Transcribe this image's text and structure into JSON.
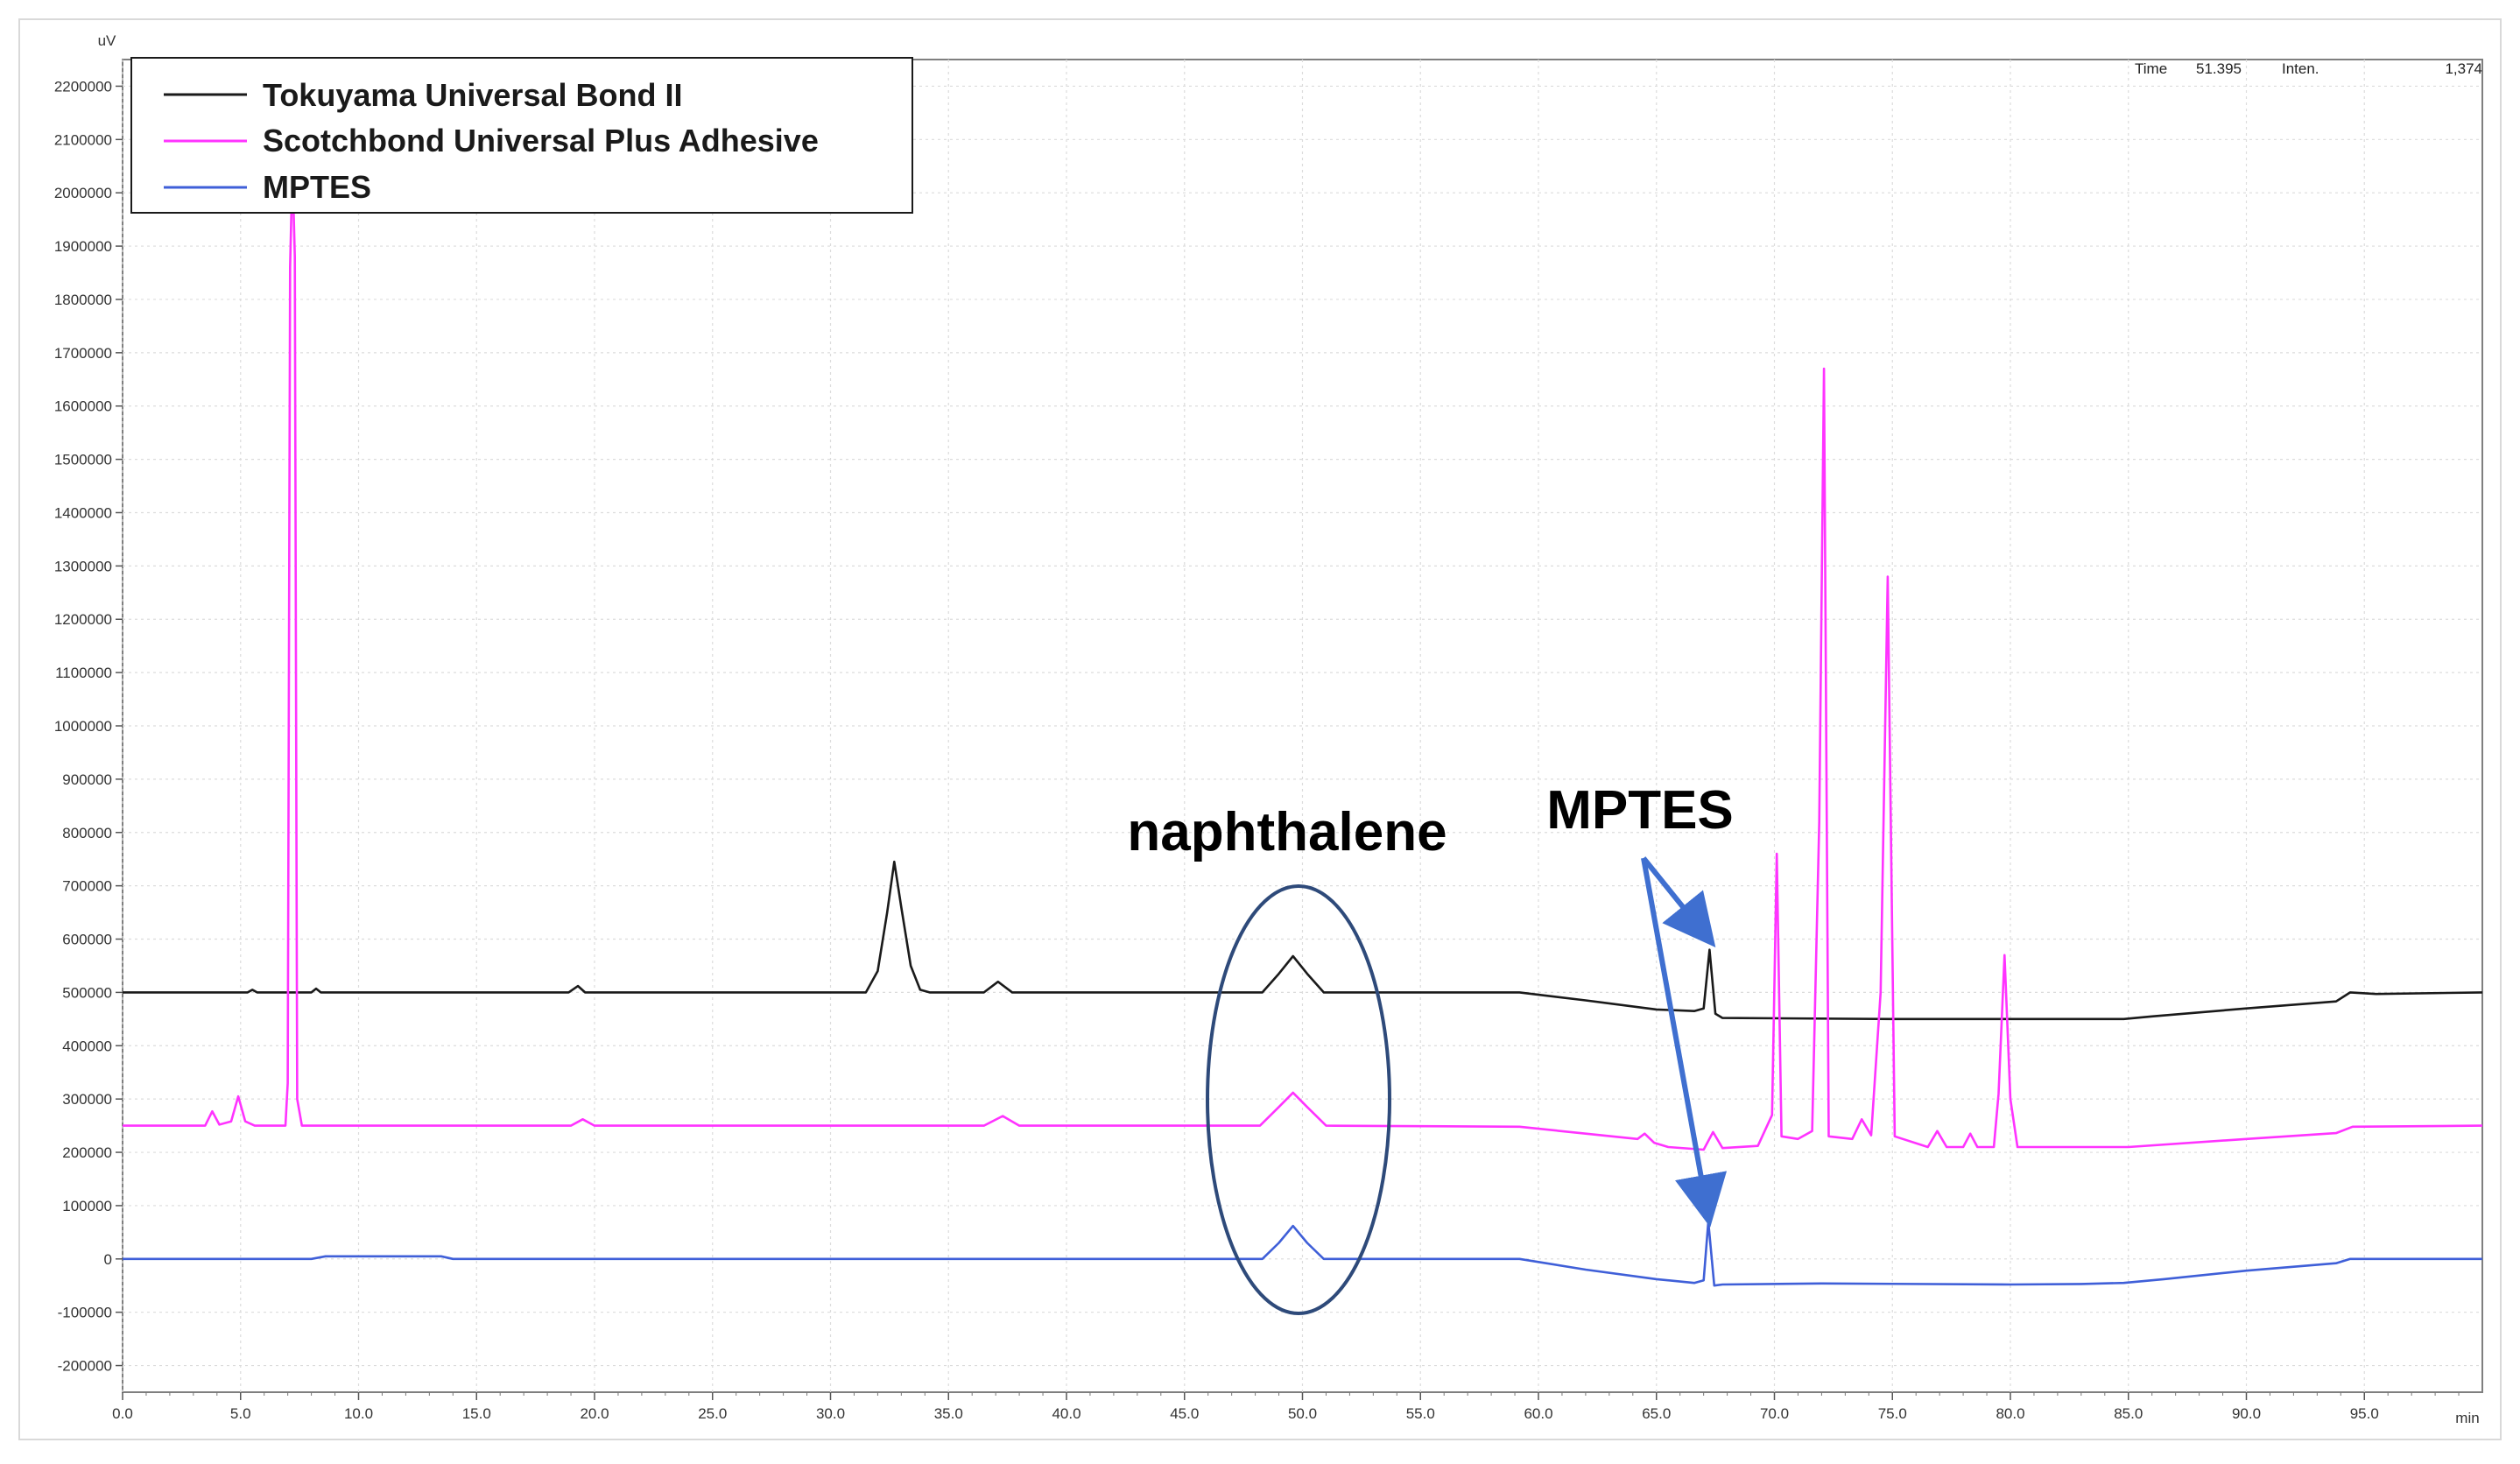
{
  "chart_data": {
    "type": "line",
    "y_unit_label": "uV",
    "x_unit_label": "min",
    "xlim": [
      0,
      100
    ],
    "ylim": [
      -250000,
      2250000
    ],
    "x_ticks": [
      0.0,
      5.0,
      10.0,
      15.0,
      20.0,
      25.0,
      30.0,
      35.0,
      40.0,
      45.0,
      50.0,
      55.0,
      60.0,
      65.0,
      70.0,
      75.0,
      80.0,
      85.0,
      90.0,
      95.0
    ],
    "x_tick_labels": [
      "0.0",
      "5.0",
      "10.0",
      "15.0",
      "20.0",
      "25.0",
      "30.0",
      "35.0",
      "40.0",
      "45.0",
      "50.0",
      "55.0",
      "60.0",
      "65.0",
      "70.0",
      "75.0",
      "80.0",
      "85.0",
      "90.0",
      "95.0"
    ],
    "y_ticks": [
      -200000,
      -100000,
      0,
      100000,
      200000,
      300000,
      400000,
      500000,
      600000,
      700000,
      800000,
      900000,
      1000000,
      1100000,
      1200000,
      1300000,
      1400000,
      1500000,
      1600000,
      1700000,
      1800000,
      1900000,
      2000000,
      2100000,
      2200000
    ],
    "y_tick_labels": [
      "-200000",
      "-100000",
      "0",
      "100000",
      "200000",
      "300000",
      "400000",
      "500000",
      "600000",
      "700000",
      "800000",
      "900000",
      "1000000",
      "1100000",
      "1200000",
      "1300000",
      "1400000",
      "1500000",
      "1600000",
      "1700000",
      "1800000",
      "1900000",
      "2000000",
      "2100000",
      "2200000"
    ],
    "grid": true,
    "legend_position": "top-left",
    "series": [
      {
        "name": "Tokuyama Universal Bond II",
        "color": "#1a1a1a",
        "points": [
          [
            0,
            500000
          ],
          [
            5.3,
            500000
          ],
          [
            5.5,
            505000
          ],
          [
            5.7,
            500000
          ],
          [
            8.0,
            500000
          ],
          [
            8.2,
            507000
          ],
          [
            8.4,
            500000
          ],
          [
            18.9,
            500000
          ],
          [
            19.3,
            512000
          ],
          [
            19.6,
            500000
          ],
          [
            31.5,
            500000
          ],
          [
            32.0,
            540000
          ],
          [
            32.4,
            650000
          ],
          [
            32.7,
            745000
          ],
          [
            33.0,
            660000
          ],
          [
            33.4,
            550000
          ],
          [
            33.8,
            505000
          ],
          [
            34.2,
            500000
          ],
          [
            36.5,
            500000
          ],
          [
            37.1,
            520000
          ],
          [
            37.7,
            500000
          ],
          [
            48.3,
            500000
          ],
          [
            49.0,
            535000
          ],
          [
            49.6,
            568000
          ],
          [
            50.2,
            535000
          ],
          [
            50.9,
            500000
          ],
          [
            59.2,
            500000
          ],
          [
            62.0,
            485000
          ],
          [
            65.0,
            468000
          ],
          [
            66.6,
            465000
          ],
          [
            67.0,
            470000
          ],
          [
            67.25,
            580000
          ],
          [
            67.5,
            460000
          ],
          [
            67.8,
            452000
          ],
          [
            75.0,
            450000
          ],
          [
            80.0,
            450000
          ],
          [
            84.8,
            450000
          ],
          [
            86.0,
            455000
          ],
          [
            90.0,
            470000
          ],
          [
            93.8,
            483000
          ],
          [
            94.4,
            500000
          ],
          [
            95.5,
            497000
          ],
          [
            100,
            500000
          ]
        ]
      },
      {
        "name": "Scotchbond Universal Plus Adhesive",
        "color": "#ff33ff",
        "points": [
          [
            0,
            250000
          ],
          [
            3.5,
            250000
          ],
          [
            3.8,
            277000
          ],
          [
            4.1,
            252000
          ],
          [
            4.6,
            258000
          ],
          [
            4.9,
            305000
          ],
          [
            5.2,
            258000
          ],
          [
            5.6,
            250000
          ],
          [
            6.9,
            250000
          ],
          [
            7.0,
            330000
          ],
          [
            7.1,
            1860000
          ],
          [
            7.2,
            2050000
          ],
          [
            7.3,
            1880000
          ],
          [
            7.4,
            300000
          ],
          [
            7.6,
            250000
          ],
          [
            19.0,
            250000
          ],
          [
            19.5,
            262000
          ],
          [
            20.0,
            250000
          ],
          [
            36.5,
            250000
          ],
          [
            37.3,
            268000
          ],
          [
            38.0,
            250000
          ],
          [
            48.2,
            250000
          ],
          [
            49.0,
            285000
          ],
          [
            49.6,
            312000
          ],
          [
            50.2,
            285000
          ],
          [
            51.0,
            250000
          ],
          [
            59.2,
            248000
          ],
          [
            62.0,
            235000
          ],
          [
            64.2,
            225000
          ],
          [
            64.5,
            235000
          ],
          [
            64.9,
            218000
          ],
          [
            65.5,
            210000
          ],
          [
            67.0,
            205000
          ],
          [
            67.4,
            238000
          ],
          [
            67.8,
            208000
          ],
          [
            69.3,
            212000
          ],
          [
            69.9,
            270000
          ],
          [
            70.1,
            760000
          ],
          [
            70.3,
            230000
          ],
          [
            71.0,
            225000
          ],
          [
            71.6,
            240000
          ],
          [
            71.9,
            820000
          ],
          [
            72.1,
            1670000
          ],
          [
            72.3,
            230000
          ],
          [
            73.3,
            225000
          ],
          [
            73.7,
            262000
          ],
          [
            74.1,
            232000
          ],
          [
            74.5,
            500000
          ],
          [
            74.8,
            1280000
          ],
          [
            75.1,
            230000
          ],
          [
            76.5,
            210000
          ],
          [
            76.9,
            240000
          ],
          [
            77.3,
            210000
          ],
          [
            78.0,
            210000
          ],
          [
            78.3,
            235000
          ],
          [
            78.6,
            210000
          ],
          [
            79.3,
            210000
          ],
          [
            79.5,
            310000
          ],
          [
            79.75,
            570000
          ],
          [
            80.0,
            300000
          ],
          [
            80.3,
            210000
          ],
          [
            81.0,
            210000
          ],
          [
            85.0,
            210000
          ],
          [
            90.0,
            225000
          ],
          [
            93.8,
            236000
          ],
          [
            94.5,
            248000
          ],
          [
            100,
            250000
          ]
        ]
      },
      {
        "name": "MPTES",
        "color": "#3f5fd8",
        "points": [
          [
            0,
            0
          ],
          [
            8.0,
            0
          ],
          [
            8.6,
            5000
          ],
          [
            13.5,
            5000
          ],
          [
            14.0,
            0
          ],
          [
            48.3,
            0
          ],
          [
            49.0,
            30000
          ],
          [
            49.6,
            62000
          ],
          [
            50.2,
            30000
          ],
          [
            50.9,
            0
          ],
          [
            59.2,
            0
          ],
          [
            62.0,
            -20000
          ],
          [
            65.0,
            -38000
          ],
          [
            66.6,
            -45000
          ],
          [
            67.0,
            -40000
          ],
          [
            67.2,
            70000
          ],
          [
            67.45,
            -50000
          ],
          [
            67.8,
            -48000
          ],
          [
            72.0,
            -46000
          ],
          [
            80.0,
            -48000
          ],
          [
            83.0,
            -47000
          ],
          [
            84.8,
            -45000
          ],
          [
            86.5,
            -38000
          ],
          [
            90.0,
            -22000
          ],
          [
            93.8,
            -8000
          ],
          [
            94.4,
            0
          ],
          [
            100,
            0
          ]
        ]
      }
    ],
    "annotations": {
      "naphthalene_label": "naphthalene",
      "mptes_label": "MPTES",
      "readout": {
        "time_label": "Time",
        "time_value": "51.395",
        "inten_label": "Inten.",
        "inten_value": "1,374"
      }
    }
  }
}
